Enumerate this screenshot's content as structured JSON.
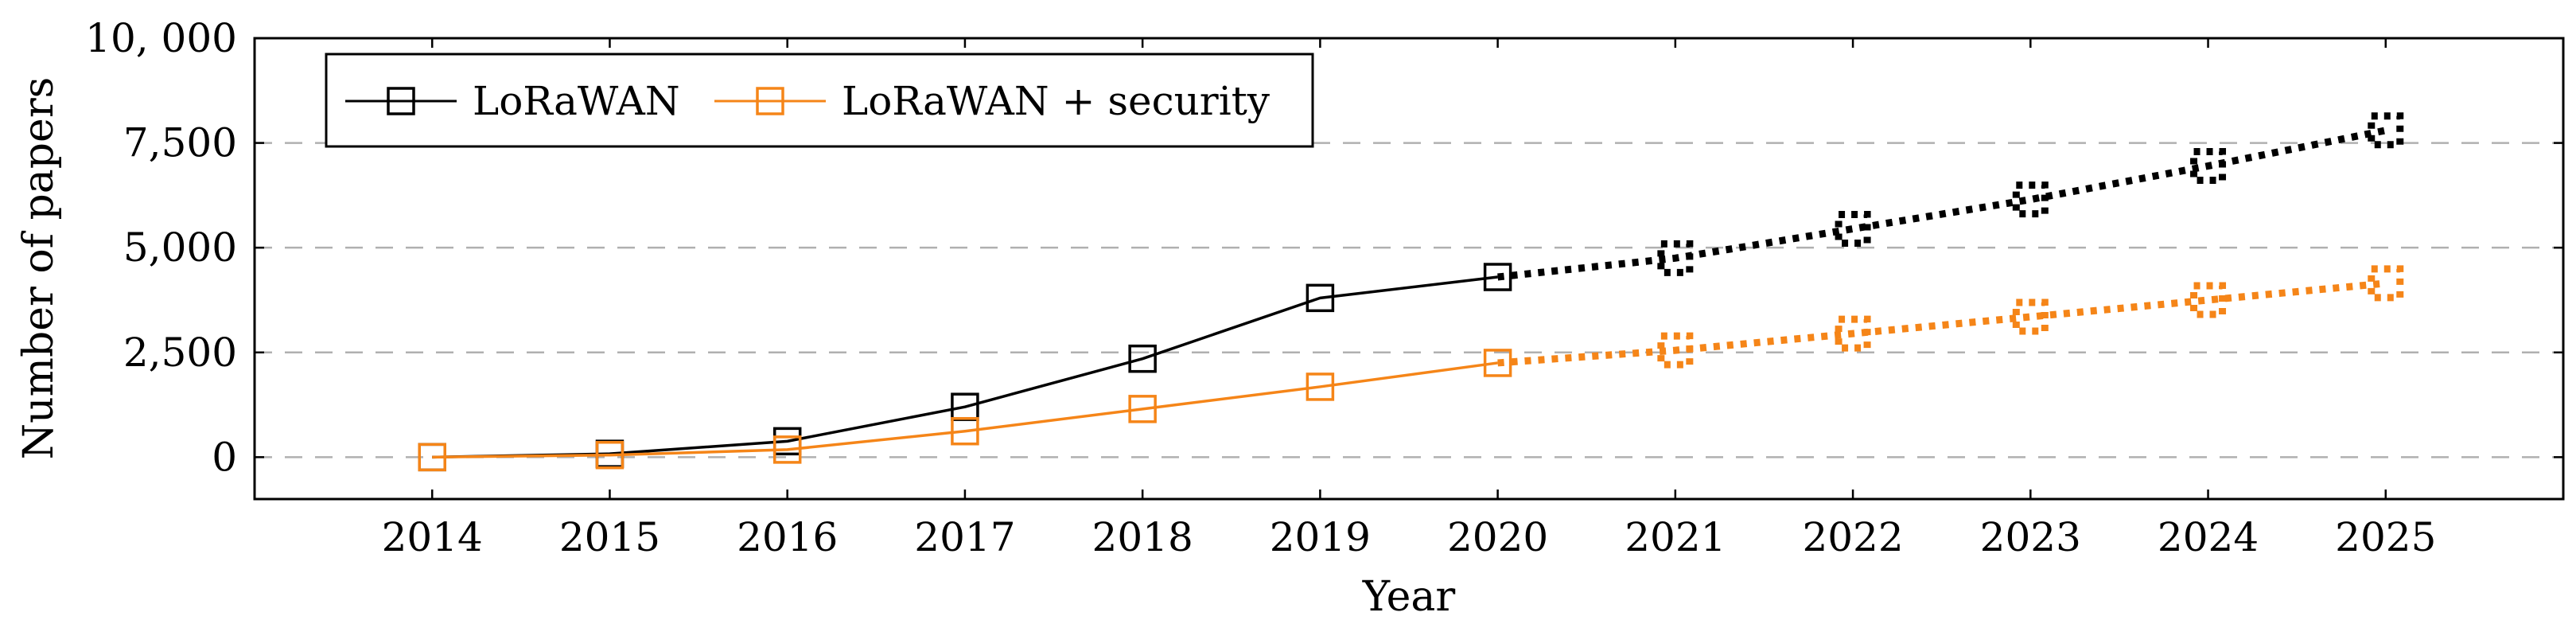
{
  "chart_data": {
    "type": "line",
    "title": "",
    "xlabel": "Year",
    "ylabel": "Number of papers",
    "ylim": [
      -1000,
      10000
    ],
    "xlim": [
      2013,
      2026
    ],
    "categories": [
      "2014",
      "2015",
      "2016",
      "2017",
      "2018",
      "2019",
      "2020",
      "2021",
      "2022",
      "2023",
      "2024",
      "2025"
    ],
    "yticks": [
      {
        "value": 0,
        "label": "0"
      },
      {
        "value": 2500,
        "label": "2,500"
      },
      {
        "value": 5000,
        "label": "5,000"
      },
      {
        "value": 7500,
        "label": "7,500"
      },
      {
        "value": 10000,
        "label": "10, 000"
      }
    ],
    "grid": "horizontal dashed",
    "legend": {
      "position": "top-left",
      "entries": [
        "LoRaWAN",
        "LoRaWAN + security"
      ]
    },
    "series": [
      {
        "name": "LoRaWAN",
        "color": "#000000",
        "observed": {
          "x": [
            2014,
            2015,
            2016,
            2017,
            2018,
            2019,
            2020
          ],
          "y": [
            0,
            80,
            380,
            1200,
            2350,
            3800,
            4300
          ]
        },
        "projected": {
          "x": [
            2020,
            2021,
            2022,
            2023,
            2024,
            2025
          ],
          "y": [
            4300,
            4750,
            5450,
            6150,
            6950,
            7800
          ]
        }
      },
      {
        "name": "LoRaWAN + security",
        "color": "#f58518",
        "observed": {
          "x": [
            2014,
            2015,
            2016,
            2017,
            2018,
            2019,
            2020
          ],
          "y": [
            0,
            50,
            180,
            620,
            1150,
            1680,
            2250
          ]
        },
        "projected": {
          "x": [
            2020,
            2021,
            2022,
            2023,
            2024,
            2025
          ],
          "y": [
            2250,
            2550,
            2950,
            3350,
            3750,
            4150
          ]
        }
      }
    ]
  }
}
